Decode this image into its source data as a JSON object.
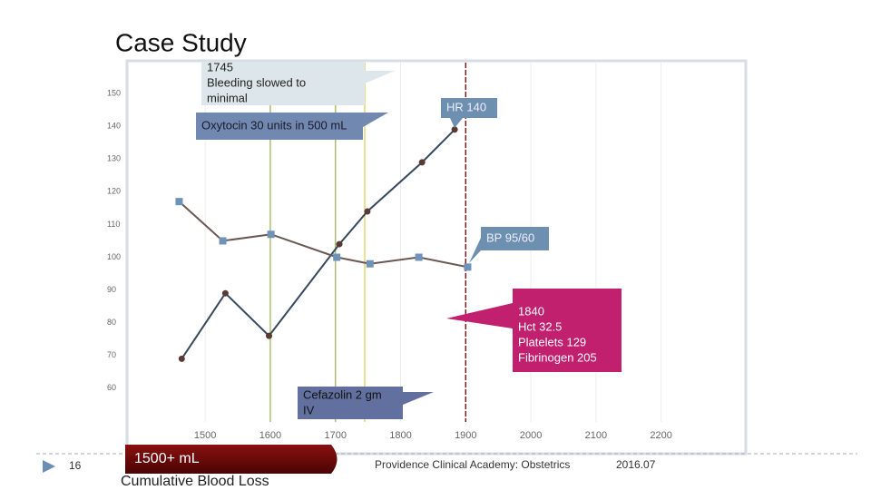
{
  "slide_title": "Case Study",
  "page_number": "16",
  "blood_loss": {
    "amount": "1500+ mL",
    "label": "Cumulative Blood Loss"
  },
  "footer": {
    "source": "Providence Clinical Academy: Obstetrics",
    "date": "2016.07"
  },
  "chart_data": {
    "type": "line",
    "xlim": [
      1380,
      2330
    ],
    "xticks": [
      1500,
      1600,
      1700,
      1800,
      1900,
      2000,
      2100,
      2200
    ],
    "ylim": [
      40,
      160
    ],
    "yticks": [
      60,
      70,
      80,
      90,
      100,
      110,
      120,
      130,
      140,
      150
    ],
    "grid": true,
    "series": [
      {
        "name": "HR",
        "color": "#36485e",
        "marker_color": "#5a3a34",
        "marker": "circle",
        "x": [
          1464,
          1531,
          1598,
          1706,
          1749,
          1833,
          1883
        ],
        "values": [
          69,
          89,
          76,
          104,
          114,
          129,
          139
        ]
      },
      {
        "name": "BP",
        "color": "#6a5752",
        "marker_color": "#6f92b8",
        "marker": "square",
        "x": [
          1460,
          1527,
          1601,
          1702,
          1753,
          1828,
          1903
        ],
        "values": [
          117,
          105,
          107,
          100,
          98,
          100,
          97
        ]
      }
    ],
    "reference_lines": [
      {
        "x": 1600,
        "color": "#a8c070"
      },
      {
        "x": 1700,
        "color": "#a8c070"
      },
      {
        "x": 1745,
        "color": "#e0d870"
      },
      {
        "x": 1900,
        "color": "#7a1a1a"
      }
    ],
    "annotations": [
      {
        "lines": [
          "1745",
          "Bleeding slowed to",
          "minimal"
        ]
      },
      {
        "lines": [
          "Oxytocin 30 units in 500 mL"
        ]
      },
      {
        "lines": [
          "HR 140"
        ]
      },
      {
        "lines": [
          "BP 95/60"
        ]
      },
      {
        "lines": [
          "1840",
          "Hct 32.5",
          "Platelets 129",
          "Fibrinogen 205"
        ]
      },
      {
        "lines": [
          "Cefazolin 2 gm",
          "IV"
        ]
      }
    ]
  }
}
